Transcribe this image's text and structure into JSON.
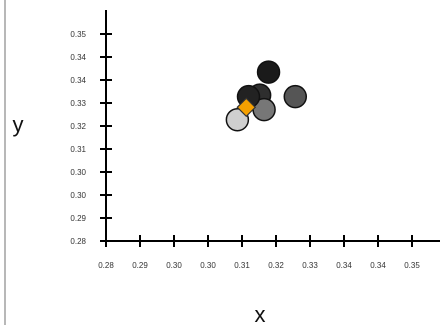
{
  "chart_data": {
    "type": "scatter",
    "xlabel": "x",
    "ylabel": "y",
    "xlim": [
      0.28,
      0.355
    ],
    "ylim": [
      0.28,
      0.36
    ],
    "x_ticks": [
      "0.28",
      "0.29",
      "0.30",
      "0.30",
      "0.31",
      "0.32",
      "0.33",
      "0.34",
      "0.34",
      "0.35"
    ],
    "y_ticks": [
      "0.28",
      "0.29",
      "0.30",
      "0.30",
      "0.31",
      "0.32",
      "0.33",
      "0.34",
      "0.34",
      "0.35"
    ],
    "grid": false,
    "series": [
      {
        "marker": "circle",
        "points": [
          {
            "x": 0.3165,
            "y": 0.3385,
            "color": "#1a1a1a"
          },
          {
            "x": 0.3145,
            "y": 0.3305,
            "color": "#2e2e2e"
          },
          {
            "x": 0.3225,
            "y": 0.33,
            "color": "#555555"
          },
          {
            "x": 0.3155,
            "y": 0.3255,
            "color": "#777777"
          },
          {
            "x": 0.3095,
            "y": 0.322,
            "color": "#cfcfcf"
          },
          {
            "x": 0.312,
            "y": 0.33,
            "color": "#222222"
          }
        ]
      },
      {
        "marker": "diamond",
        "points": [
          {
            "x": 0.3115,
            "y": 0.3263,
            "color": "#f5a000"
          }
        ]
      }
    ]
  }
}
